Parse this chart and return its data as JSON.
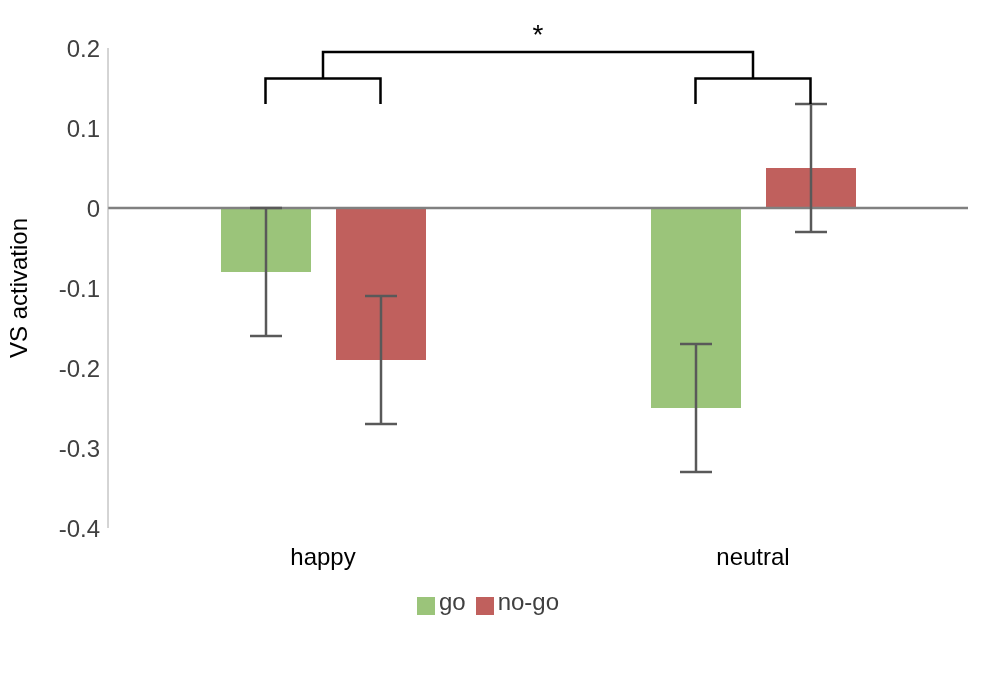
{
  "chart_data": {
    "type": "bar",
    "ylabel": "VS activation",
    "categories": [
      "happy",
      "neutral"
    ],
    "series": [
      {
        "name": "go",
        "color": "#9bc47a",
        "values": [
          -0.08,
          -0.25
        ],
        "errors": [
          0.08,
          0.08
        ]
      },
      {
        "name": "no-go",
        "color": "#c0605d",
        "values": [
          -0.19,
          0.05
        ],
        "errors": [
          0.08,
          0.08
        ]
      }
    ],
    "ylim": [
      -0.4,
      0.2
    ],
    "yticks": [
      -0.4,
      -0.3,
      -0.2,
      -0.1,
      0,
      0.1,
      0.2
    ],
    "grid": false,
    "legend": "bottom",
    "ref_lines": [
      {
        "axis": "y",
        "value": 0,
        "color": "#808080"
      }
    ],
    "annotations": [
      "*"
    ]
  }
}
